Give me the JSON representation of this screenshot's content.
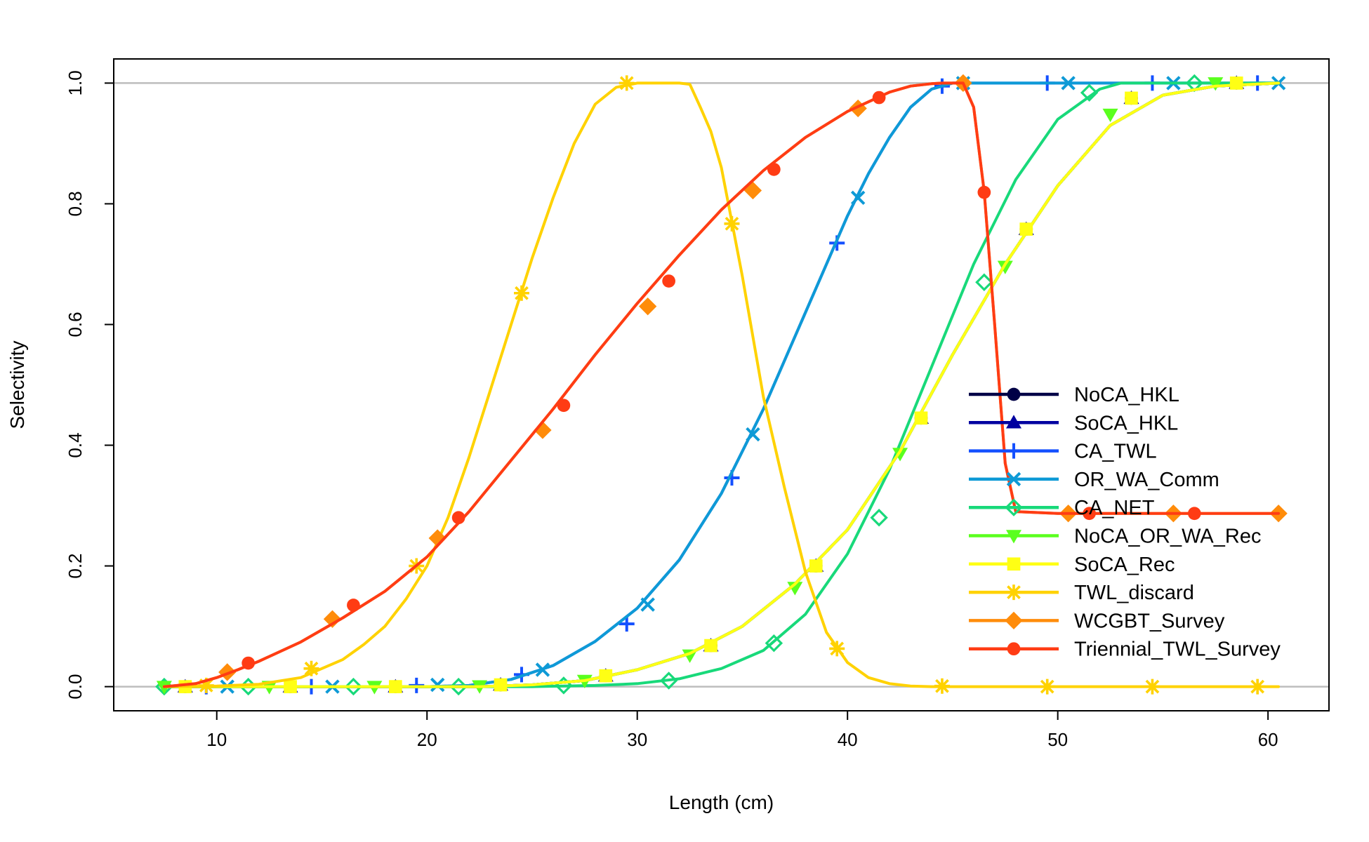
{
  "chart_data": {
    "type": "line",
    "title": "",
    "xlabel": "Length (cm)",
    "ylabel": "Selectivity",
    "xlim": [
      5.1,
      62.9
    ],
    "ylim": [
      -0.04,
      1.04
    ],
    "xticks": [
      10,
      20,
      30,
      40,
      50,
      60
    ],
    "yticks": [
      0.0,
      0.2,
      0.4,
      0.6,
      0.8,
      1.0
    ],
    "xtick_labels": [
      "10",
      "20",
      "30",
      "40",
      "50",
      "60"
    ],
    "ytick_labels": [
      "0.0",
      "0.2",
      "0.4",
      "0.6",
      "0.8",
      "1.0"
    ],
    "reference_lines_y": [
      0,
      1
    ],
    "legend_position": "right",
    "grid": false,
    "series": [
      {
        "name": "NoCA_HKL",
        "color": "#000046",
        "marker": "circle",
        "x": [
          7.5,
          10,
          12.5,
          15,
          17.5,
          20,
          22.5,
          25,
          27.5,
          30,
          32.5,
          35,
          37.5,
          40,
          42.5,
          45,
          47.5,
          50,
          52.5,
          55,
          57.5,
          60.5
        ],
        "y": [
          0,
          0,
          0,
          0,
          0,
          0,
          0,
          0.003,
          0.01,
          0.028,
          0.055,
          0.1,
          0.17,
          0.26,
          0.39,
          0.55,
          0.7,
          0.83,
          0.93,
          0.98,
          0.995,
          1.0
        ],
        "marker_x": [
          8.5,
          13.5,
          18.5,
          23.5,
          28.5,
          33.5,
          38.5,
          43.5,
          48.5,
          53.5,
          58.5
        ],
        "marker_y": [
          0,
          0,
          0,
          0.003,
          0.018,
          0.068,
          0.2,
          0.445,
          0.758,
          0.975,
          1.0
        ]
      },
      {
        "name": "SoCA_HKL",
        "color": "#0000a0",
        "marker": "triangle",
        "x": [
          7.5,
          10,
          12.5,
          15,
          17.5,
          20,
          22.5,
          25,
          27.5,
          30,
          32.5,
          35,
          37.5,
          40,
          42.5,
          45,
          47.5,
          50,
          52.5,
          55,
          57.5,
          60.5
        ],
        "y": [
          0,
          0,
          0,
          0,
          0,
          0,
          0,
          0.003,
          0.01,
          0.028,
          0.055,
          0.1,
          0.17,
          0.26,
          0.39,
          0.55,
          0.7,
          0.83,
          0.93,
          0.98,
          0.995,
          1.0
        ],
        "marker_x": [
          8.5,
          13.5,
          18.5,
          23.5,
          28.5,
          33.5,
          38.5,
          43.5,
          48.5,
          53.5,
          58.5
        ],
        "marker_y": [
          0,
          0,
          0,
          0.003,
          0.018,
          0.068,
          0.2,
          0.445,
          0.758,
          0.975,
          1.0
        ]
      },
      {
        "name": "CA_TWL",
        "color": "#1450ff",
        "marker": "plus",
        "x": [
          7.5,
          10,
          15,
          20,
          22,
          24,
          26,
          28,
          30,
          32,
          34,
          36,
          38,
          40,
          41,
          42,
          43,
          44,
          45,
          50,
          55,
          60.5
        ],
        "y": [
          0,
          0,
          0,
          0,
          0.002,
          0.012,
          0.035,
          0.075,
          0.13,
          0.21,
          0.32,
          0.46,
          0.62,
          0.78,
          0.85,
          0.91,
          0.96,
          0.99,
          1.0,
          1.0,
          1.0,
          1.0
        ],
        "marker_x": [
          9.5,
          14.5,
          19.5,
          24.5,
          29.5,
          34.5,
          39.5,
          44.5,
          49.5,
          54.5,
          59.5
        ],
        "marker_y": [
          0,
          0,
          0.002,
          0.02,
          0.104,
          0.346,
          0.735,
          0.995,
          1.0,
          1.0,
          1.0
        ]
      },
      {
        "name": "OR_WA_Comm",
        "color": "#0e9ad6",
        "marker": "x",
        "x": [
          7.5,
          10,
          15,
          20,
          22,
          24,
          26,
          28,
          30,
          32,
          34,
          36,
          38,
          40,
          41,
          42,
          43,
          44,
          45,
          50,
          55,
          60.5
        ],
        "y": [
          0,
          0,
          0,
          0,
          0.002,
          0.012,
          0.035,
          0.075,
          0.13,
          0.21,
          0.32,
          0.46,
          0.62,
          0.78,
          0.85,
          0.91,
          0.96,
          0.99,
          1.0,
          1.0,
          1.0,
          1.0
        ],
        "marker_x": [
          10.5,
          15.5,
          20.5,
          25.5,
          30.5,
          35.5,
          40.5,
          45.5,
          50.5,
          55.5,
          60.5
        ],
        "marker_y": [
          0,
          0,
          0.003,
          0.028,
          0.136,
          0.418,
          0.81,
          1.0,
          1.0,
          1.0,
          1.0
        ]
      },
      {
        "name": "CA_NET",
        "color": "#18d97a",
        "marker": "diamond-open",
        "x": [
          7.5,
          10,
          15,
          20,
          25,
          28,
          30,
          32,
          34,
          36,
          38,
          40,
          42,
          44,
          46,
          48,
          50,
          52,
          53,
          54,
          55,
          60.5
        ],
        "y": [
          0,
          0,
          0,
          0,
          0,
          0.002,
          0.005,
          0.013,
          0.03,
          0.06,
          0.12,
          0.22,
          0.36,
          0.53,
          0.7,
          0.84,
          0.94,
          0.99,
          1.0,
          1.0,
          1.0,
          1.0
        ],
        "marker_x": [
          7.5,
          11.5,
          16.5,
          21.5,
          26.5,
          31.5,
          36.5,
          41.5,
          46.5,
          51.5,
          56.5
        ],
        "marker_y": [
          0,
          0,
          0,
          0,
          0.002,
          0.01,
          0.072,
          0.28,
          0.67,
          0.984,
          1.0
        ]
      },
      {
        "name": "NoCA_OR_WA_Rec",
        "color": "#5aff1e",
        "marker": "triangle-down",
        "x": [
          7.5,
          10,
          12.5,
          15,
          17.5,
          20,
          22.5,
          25,
          27.5,
          30,
          32.5,
          35,
          37.5,
          40,
          42.5,
          45,
          47.5,
          50,
          52.5,
          55,
          57.5,
          60.5
        ],
        "y": [
          0,
          0,
          0,
          0,
          0,
          0,
          0,
          0.003,
          0.01,
          0.028,
          0.055,
          0.1,
          0.17,
          0.26,
          0.39,
          0.55,
          0.7,
          0.83,
          0.93,
          0.98,
          0.995,
          1.0
        ],
        "marker_x": [
          7.5,
          12.5,
          17.5,
          22.5,
          27.5,
          32.5,
          37.5,
          42.5,
          47.5,
          52.5,
          57.5
        ],
        "marker_y": [
          0,
          0,
          0,
          0.001,
          0.01,
          0.052,
          0.164,
          0.386,
          0.696,
          0.948,
          1.0
        ]
      },
      {
        "name": "SoCA_Rec",
        "color": "#ffff14",
        "marker": "square",
        "x": [
          7.5,
          10,
          12.5,
          15,
          17.5,
          20,
          22.5,
          25,
          27.5,
          30,
          32.5,
          35,
          37.5,
          40,
          42.5,
          45,
          47.5,
          50,
          52.5,
          55,
          57.5,
          60.5
        ],
        "y": [
          0,
          0,
          0,
          0,
          0,
          0,
          0,
          0.003,
          0.01,
          0.028,
          0.055,
          0.1,
          0.17,
          0.26,
          0.39,
          0.55,
          0.7,
          0.83,
          0.93,
          0.98,
          0.995,
          1.0
        ],
        "marker_x": [
          8.5,
          13.5,
          18.5,
          23.5,
          28.5,
          33.5,
          38.5,
          43.5,
          48.5,
          53.5,
          58.5
        ],
        "marker_y": [
          0,
          0,
          0,
          0.003,
          0.018,
          0.068,
          0.2,
          0.445,
          0.758,
          0.975,
          1.0
        ]
      },
      {
        "name": "TWL_discard",
        "color": "#ffd200",
        "marker": "asterisk",
        "x": [
          7.5,
          10,
          12,
          14,
          16,
          17,
          18,
          19,
          20,
          21,
          22,
          23,
          24,
          25,
          26,
          27,
          28,
          29,
          30,
          31,
          32,
          32.5,
          33,
          33.5,
          34,
          34.5,
          35,
          35.5,
          36,
          37,
          38,
          39,
          40,
          41,
          42,
          43,
          44,
          45,
          60.5
        ],
        "y": [
          0,
          0.001,
          0.004,
          0.015,
          0.045,
          0.07,
          0.1,
          0.145,
          0.2,
          0.28,
          0.38,
          0.49,
          0.6,
          0.71,
          0.81,
          0.9,
          0.965,
          0.993,
          1.0,
          1.0,
          1.0,
          0.998,
          0.96,
          0.92,
          0.86,
          0.77,
          0.68,
          0.58,
          0.48,
          0.33,
          0.19,
          0.09,
          0.04,
          0.015,
          0.005,
          0.001,
          0,
          0,
          0
        ],
        "marker_x": [
          9.5,
          14.5,
          19.5,
          24.5,
          29.5,
          34.5,
          39.5,
          44.5,
          49.5,
          54.5,
          59.5
        ],
        "marker_y": [
          0.002,
          0.03,
          0.2,
          0.652,
          1.0,
          0.767,
          0.063,
          0.001,
          0,
          0,
          0
        ]
      },
      {
        "name": "WCGBT_Survey",
        "color": "#ff8c0a",
        "marker": "diamond",
        "x": [
          7.5,
          9,
          10,
          11,
          12,
          14,
          16,
          18,
          20,
          22,
          24,
          26,
          28,
          30,
          32,
          34,
          36,
          38,
          40,
          42,
          43,
          44,
          44.5,
          45,
          45.5,
          46,
          46.5,
          47,
          47.5,
          48,
          50,
          55,
          60.5
        ],
        "y": [
          0,
          0.005,
          0.015,
          0.028,
          0.042,
          0.074,
          0.114,
          0.158,
          0.215,
          0.29,
          0.375,
          0.46,
          0.55,
          0.635,
          0.715,
          0.79,
          0.855,
          0.91,
          0.953,
          0.985,
          0.995,
          0.999,
          1.0,
          1.0,
          1.0,
          0.96,
          0.82,
          0.6,
          0.37,
          0.29,
          0.287,
          0.287,
          0.287
        ],
        "marker_x": [
          10.5,
          15.5,
          20.5,
          25.5,
          30.5,
          35.5,
          40.5,
          45.5,
          50.5,
          55.5,
          60.5
        ],
        "marker_y": [
          0.024,
          0.112,
          0.246,
          0.425,
          0.63,
          0.822,
          0.958,
          1.0,
          0.287,
          0.287,
          0.287
        ]
      },
      {
        "name": "Triennial_TWL_Survey",
        "color": "#ff3c14",
        "marker": "circle",
        "x": [
          7.5,
          9,
          10,
          11,
          12,
          14,
          16,
          18,
          20,
          22,
          24,
          26,
          28,
          30,
          32,
          34,
          36,
          38,
          40,
          42,
          43,
          44,
          44.5,
          45,
          45.5,
          46,
          46.5,
          47,
          47.5,
          48,
          50,
          55,
          60.5
        ],
        "y": [
          0,
          0.005,
          0.015,
          0.028,
          0.042,
          0.074,
          0.114,
          0.158,
          0.215,
          0.29,
          0.375,
          0.46,
          0.55,
          0.635,
          0.715,
          0.79,
          0.855,
          0.91,
          0.953,
          0.985,
          0.995,
          0.999,
          1.0,
          1.0,
          1.0,
          0.96,
          0.82,
          0.6,
          0.37,
          0.29,
          0.287,
          0.287,
          0.287
        ],
        "marker_x": [
          11.5,
          16.5,
          21.5,
          26.5,
          31.5,
          36.5,
          41.5,
          46.5,
          51.5,
          56.5
        ],
        "marker_y": [
          0.039,
          0.135,
          0.28,
          0.466,
          0.672,
          0.857,
          0.976,
          0.819,
          0.287,
          0.287
        ]
      }
    ]
  }
}
